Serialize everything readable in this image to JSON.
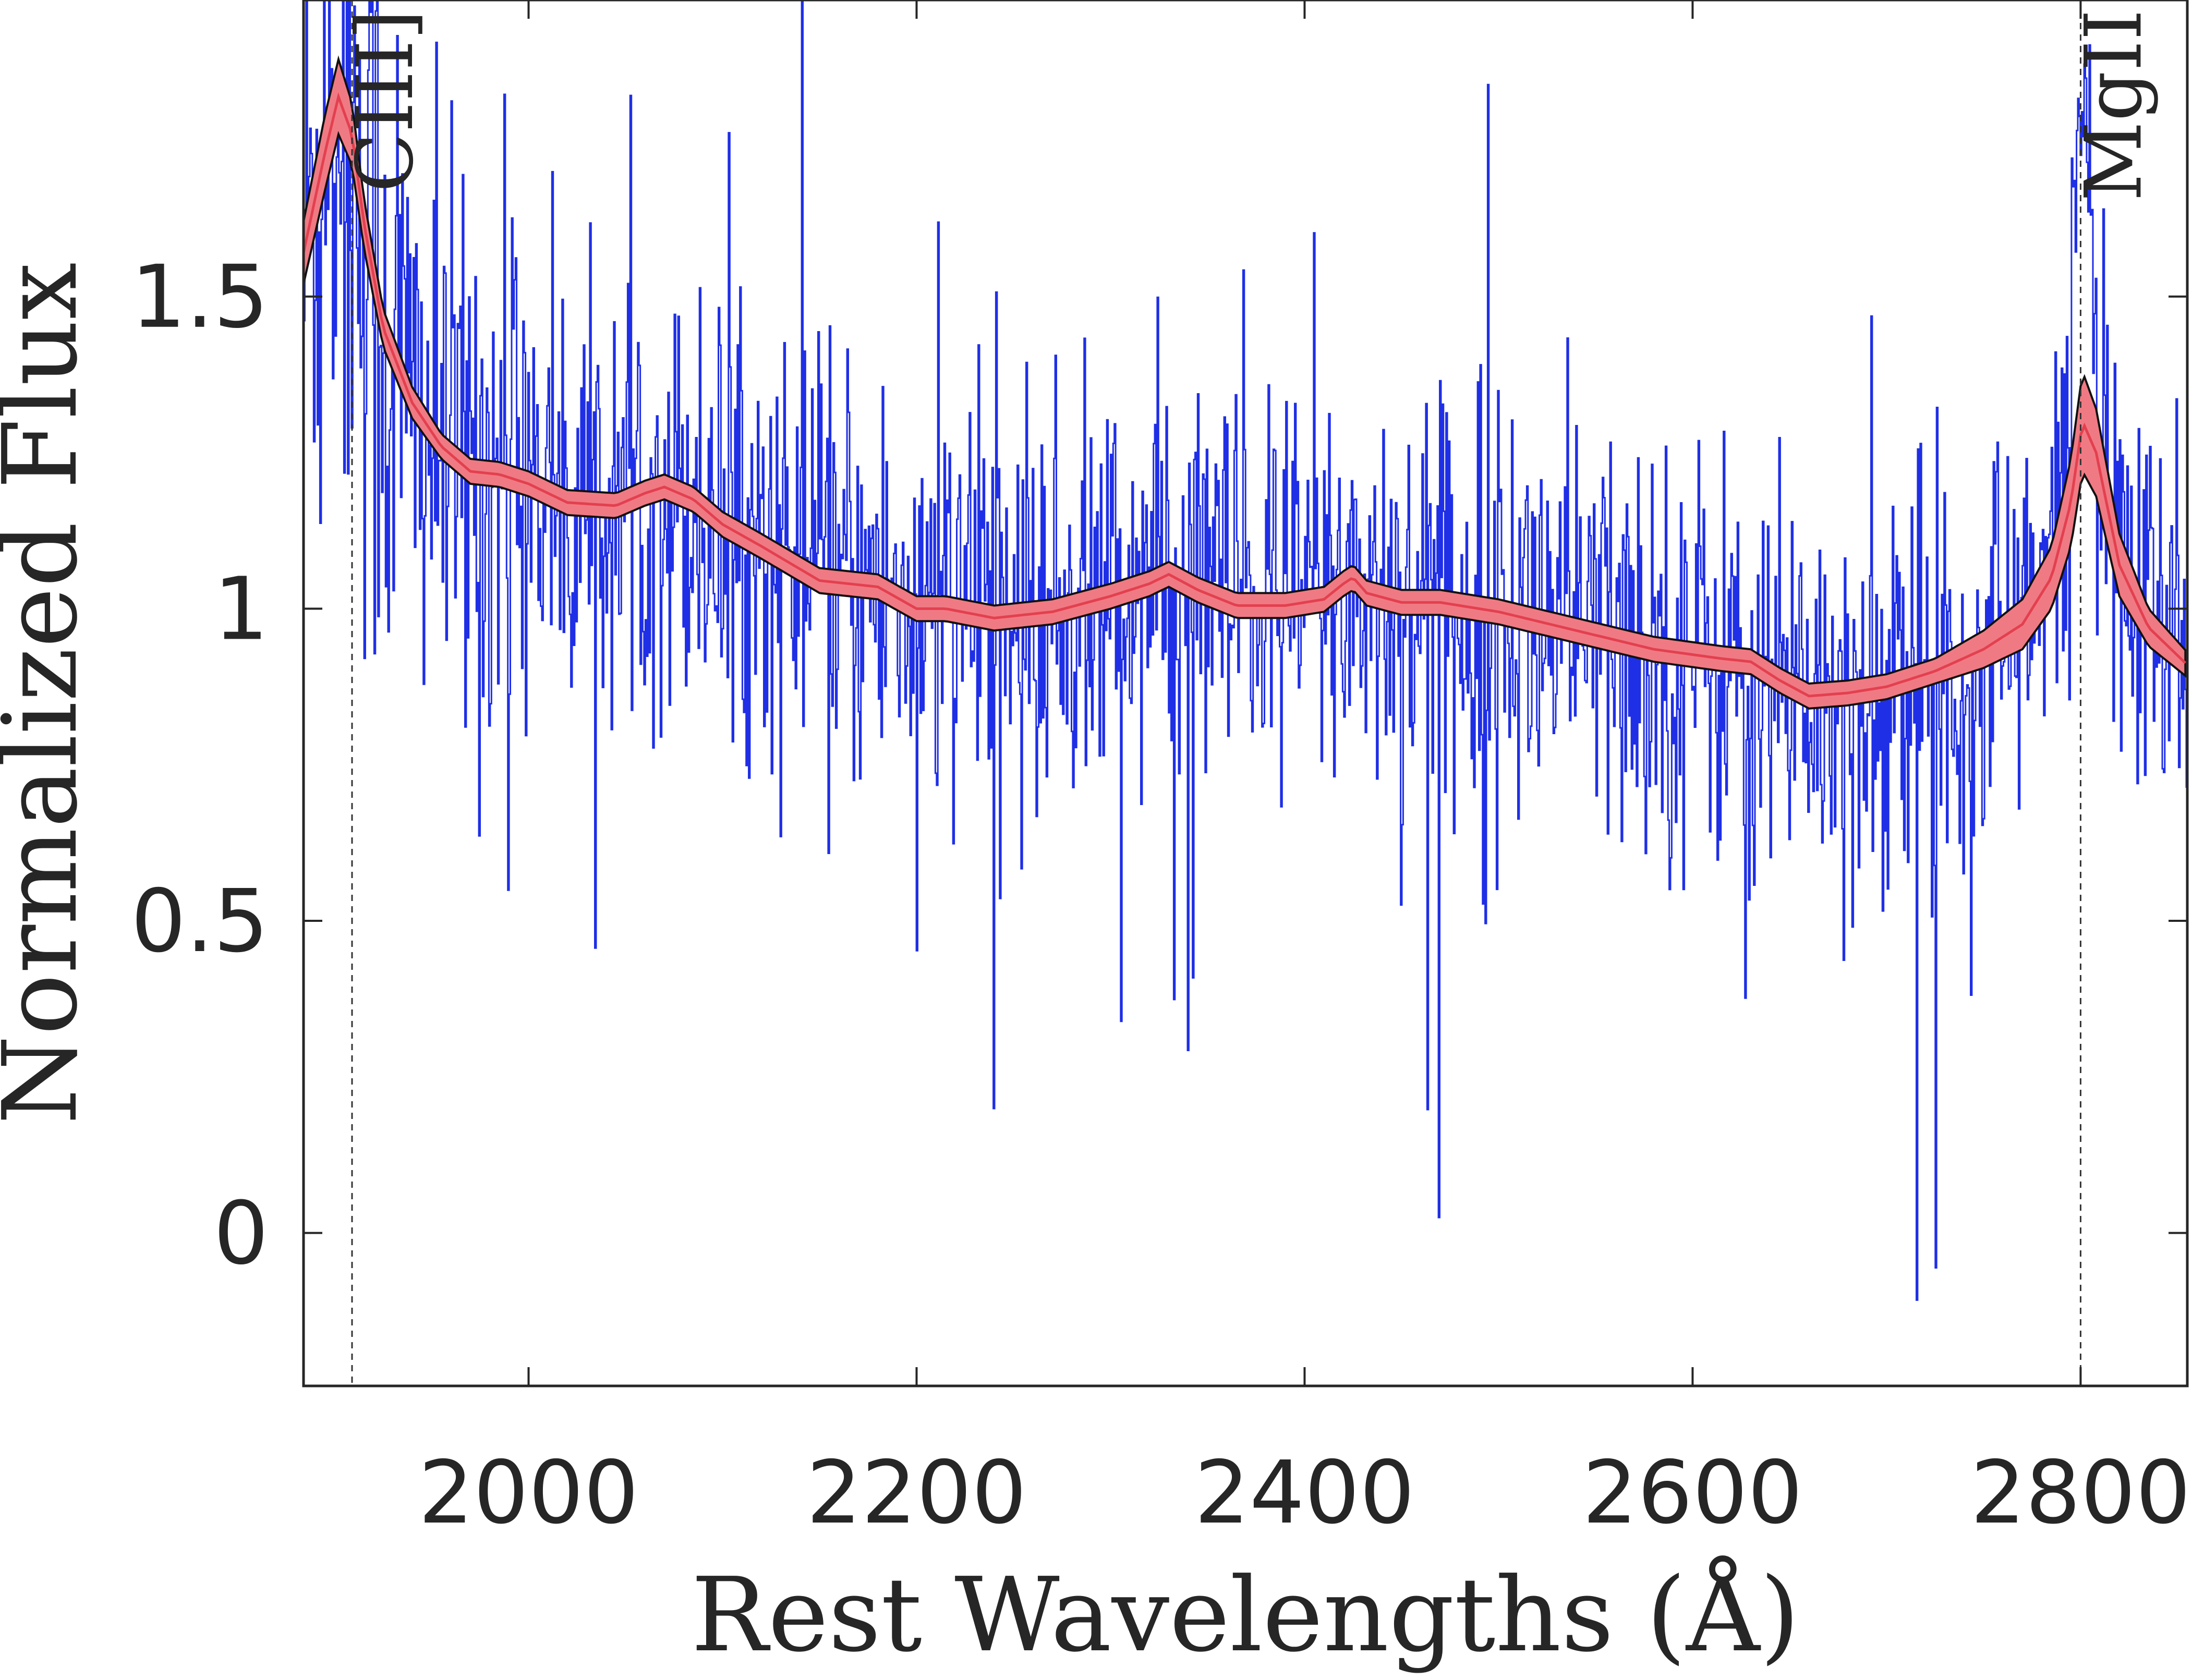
{
  "chart_data": {
    "type": "line",
    "title": "",
    "xlabel": "Rest Wavelengths (Å)",
    "ylabel": "Normalized Flux",
    "xlim": [
      1884,
      2855
    ],
    "ylim": [
      -0.245,
      1.975
    ],
    "x_ticks": [
      2000,
      2200,
      2400,
      2600,
      2800
    ],
    "x_tick_labels": [
      "2000",
      "2200",
      "2400",
      "2600",
      "2800"
    ],
    "y_ticks": [
      0,
      0.5,
      1,
      1.5
    ],
    "y_tick_labels": [
      "0",
      "0.5",
      "1",
      "1.5"
    ],
    "grid": false,
    "legend": "none",
    "colors": {
      "observed": "#1f2fe6",
      "model_band": "#f07a84",
      "model_line": "#e3404f",
      "model_edge": "#111111",
      "axis": "#262626"
    },
    "emission_lines": [
      {
        "label": "CIII]",
        "x": 1909
      },
      {
        "label": "MgII",
        "x": 2800
      }
    ],
    "observed_spectrum": {
      "x_start": 1884,
      "x_step": 0.65,
      "note_generation": "noisy",
      "base": "model"
    },
    "model": {
      "x": [
        1884,
        1895,
        1902,
        1909,
        1915,
        1925,
        1940,
        1955,
        1970,
        1985,
        2000,
        2020,
        2045,
        2060,
        2070,
        2085,
        2100,
        2120,
        2150,
        2180,
        2200,
        2215,
        2240,
        2270,
        2300,
        2320,
        2330,
        2345,
        2365,
        2390,
        2410,
        2420,
        2425,
        2432,
        2450,
        2470,
        2500,
        2540,
        2580,
        2615,
        2630,
        2645,
        2660,
        2680,
        2700,
        2725,
        2750,
        2770,
        2785,
        2795,
        2801,
        2808,
        2820,
        2835,
        2855
      ],
      "y": [
        1.57,
        1.73,
        1.82,
        1.76,
        1.62,
        1.45,
        1.33,
        1.26,
        1.22,
        1.215,
        1.2,
        1.17,
        1.165,
        1.185,
        1.195,
        1.175,
        1.135,
        1.1,
        1.045,
        1.035,
        1.0,
        1.0,
        0.985,
        0.995,
        1.02,
        1.04,
        1.055,
        1.03,
        1.005,
        1.005,
        1.015,
        1.04,
        1.05,
        1.025,
        1.01,
        1.01,
        0.995,
        0.965,
        0.935,
        0.92,
        0.915,
        0.885,
        0.86,
        0.865,
        0.875,
        0.9,
        0.935,
        0.975,
        1.05,
        1.17,
        1.3,
        1.25,
        1.07,
        0.97,
        0.91
      ],
      "band": [
        0.05,
        0.06,
        0.06,
        0.05,
        0.04,
        0.03,
        0.025,
        0.02,
        0.02,
        0.02,
        0.02,
        0.02,
        0.02,
        0.02,
        0.02,
        0.02,
        0.02,
        0.02,
        0.02,
        0.02,
        0.02,
        0.02,
        0.02,
        0.02,
        0.02,
        0.02,
        0.02,
        0.02,
        0.02,
        0.02,
        0.02,
        0.02,
        0.02,
        0.02,
        0.02,
        0.02,
        0.02,
        0.02,
        0.02,
        0.02,
        0.02,
        0.02,
        0.02,
        0.02,
        0.02,
        0.02,
        0.03,
        0.04,
        0.05,
        0.07,
        0.08,
        0.07,
        0.05,
        0.03,
        0.02
      ]
    }
  }
}
